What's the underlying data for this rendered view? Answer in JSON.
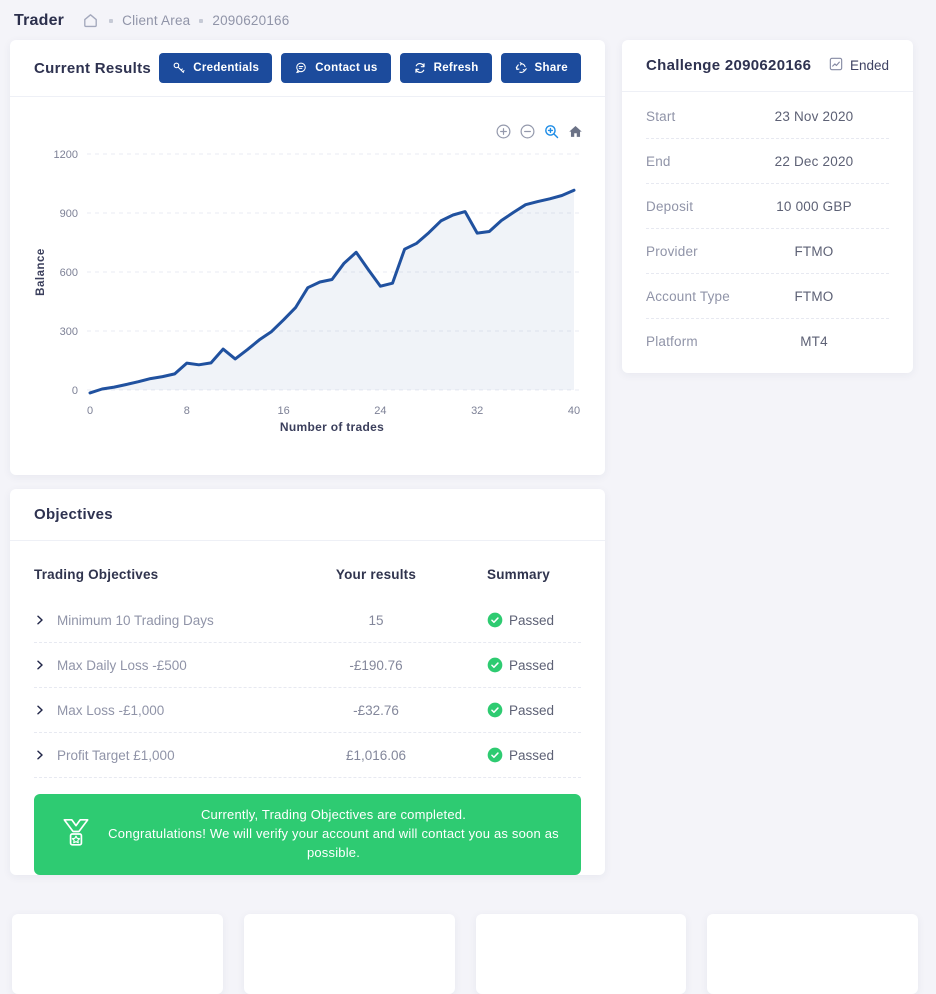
{
  "breadcrumb": {
    "title": "Trader",
    "items": [
      "Client Area",
      "2090620166"
    ]
  },
  "current_results": {
    "title": "Current Results",
    "buttons": [
      {
        "label": "Credentials",
        "icon": "key-icon"
      },
      {
        "label": "Contact us",
        "icon": "chat-icon"
      },
      {
        "label": "Refresh",
        "icon": "refresh-icon"
      },
      {
        "label": "Share",
        "icon": "share-icon"
      }
    ],
    "toolbar_icons": [
      "zoom-in",
      "zoom-out",
      "selection-zoom",
      "reset-home"
    ]
  },
  "chart_data": {
    "type": "area",
    "title": "",
    "xlabel": "Number of trades",
    "ylabel": "Balance",
    "x": [
      0,
      1,
      2,
      3,
      4,
      5,
      6,
      7,
      8,
      9,
      10,
      11,
      12,
      13,
      14,
      15,
      16,
      17,
      18,
      19,
      20,
      21,
      22,
      23,
      24,
      25,
      26,
      27,
      28,
      29,
      30,
      31,
      32,
      33,
      34,
      35,
      36,
      37,
      38,
      39,
      40
    ],
    "series": [
      {
        "name": "Balance",
        "values": [
          -15,
          5,
          15,
          28,
          42,
          58,
          68,
          82,
          137,
          128,
          138,
          208,
          158,
          205,
          255,
          297,
          357,
          420,
          520,
          549,
          562,
          645,
          700,
          612,
          528,
          543,
          716,
          746,
          800,
          860,
          890,
          907,
          798,
          806,
          862,
          903,
          942,
          958,
          972,
          989,
          1016
        ]
      }
    ],
    "xticks": [
      0,
      8,
      16,
      24,
      32,
      40
    ],
    "yticks": [
      0,
      300,
      600,
      900,
      1200
    ],
    "ylim": [
      -60,
      1260
    ],
    "grid": "horizontal-dashed",
    "legend": "none",
    "line_color": "#20519f",
    "fill_color": "#2b5aa0"
  },
  "challenge": {
    "title": "Challenge 2090620166",
    "status_label": "Ended",
    "rows": [
      {
        "label": "Start",
        "value": "23 Nov 2020"
      },
      {
        "label": "End",
        "value": "22 Dec 2020"
      },
      {
        "label": "Deposit",
        "value": "10 000 GBP"
      },
      {
        "label": "Provider",
        "value": "FTMO"
      },
      {
        "label": "Account Type",
        "value": "FTMO"
      },
      {
        "label": "Platform",
        "value": "MT4"
      }
    ]
  },
  "objectives": {
    "title": "Objectives",
    "table": {
      "headers": [
        "Trading Objectives",
        "Your results",
        "Summary"
      ],
      "rows": [
        {
          "objective": "Minimum 10 Trading Days",
          "result": "15",
          "status": "Passed"
        },
        {
          "objective": "Max Daily Loss -£500",
          "result": "-£190.76",
          "status": "Passed"
        },
        {
          "objective": "Max Loss -£1,000",
          "result": "-£32.76",
          "status": "Passed"
        },
        {
          "objective": "Profit Target £1,000",
          "result": "£1,016.06",
          "status": "Passed"
        }
      ]
    },
    "banner": {
      "line1": "Currently, Trading Objectives are completed.",
      "line2": "Congratulations! We will verify your account and will contact you as soon as possible."
    }
  },
  "colors": {
    "primary_blue": "#1c4b9c",
    "chart_line": "#20519f",
    "success_green": "#2ecb71",
    "page_bg": "#f4f4f9"
  }
}
